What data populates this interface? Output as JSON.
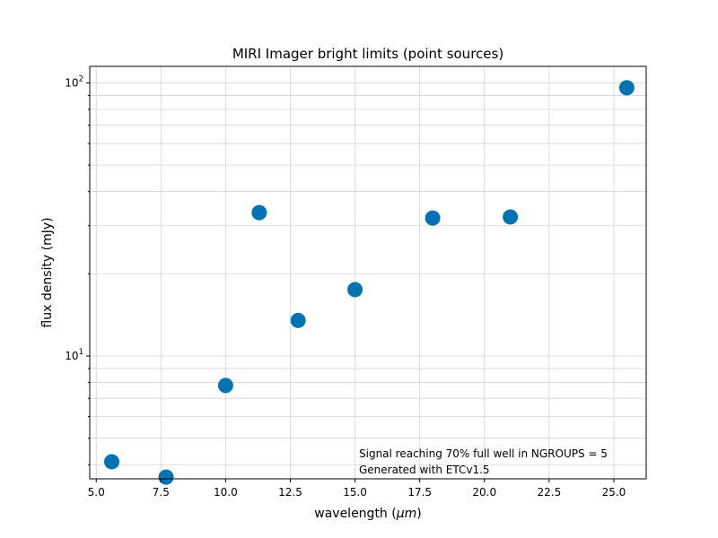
{
  "chart_data": {
    "type": "scatter",
    "title": "MIRI Imager bright limits (point sources)",
    "xlabel": "wavelength (",
    "xlabel_unit": "μm",
    "xlabel_end": ")",
    "ylabel": "flux density (mJy)",
    "xlim": [
      4.75,
      26.25
    ],
    "ylim": [
      3.55,
      115
    ],
    "y_scale": "log",
    "grid": true,
    "x_ticks": [
      5.0,
      7.5,
      10.0,
      12.5,
      15.0,
      17.5,
      20.0,
      22.5,
      25.0
    ],
    "x_tick_labels": [
      "5.0",
      "7.5",
      "10.0",
      "12.5",
      "15.0",
      "17.5",
      "20.0",
      "22.5",
      "25.0"
    ],
    "y_major_ticks": [
      10,
      100
    ],
    "y_tick_labels": [
      {
        "base": "10",
        "exp": "1"
      },
      {
        "base": "10",
        "exp": "2"
      }
    ],
    "marker_color": "#0072b2",
    "x": [
      5.6,
      7.7,
      10.0,
      11.3,
      12.8,
      15.0,
      18.0,
      21.0,
      25.5
    ],
    "y": [
      4.1,
      3.6,
      7.8,
      33.5,
      13.5,
      17.5,
      32.0,
      32.3,
      96.0
    ],
    "annotations": [
      "Signal reaching 70% full well in NGROUPS = 5",
      "Generated with ETCv1.5"
    ]
  }
}
